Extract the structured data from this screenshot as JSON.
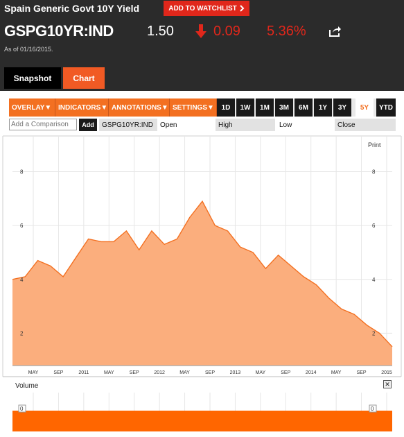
{
  "header": {
    "title": "Spain Generic Govt 10Y Yield",
    "watchlist_label": "ADD TO WATCHLIST",
    "ticker": "GSPG10YR:IND",
    "price": "1.50",
    "change": "0.09",
    "change_pct": "5.36%",
    "as_of": "As of 01/16/2015.",
    "colors": {
      "bg": "#2b2b2b",
      "down": "#e0271b"
    }
  },
  "tabs": [
    {
      "label": "Snapshot",
      "active": false
    },
    {
      "label": "Chart",
      "active": true
    }
  ],
  "toolbar": {
    "menus": [
      "OVERLAY",
      "INDICATORS",
      "ANNOTATIONS",
      "SETTINGS"
    ],
    "ranges": [
      "1D",
      "1W",
      "1M",
      "3M",
      "6M",
      "1Y",
      "3Y",
      "5Y",
      "YTD"
    ],
    "active_range": "5Y"
  },
  "compare": {
    "placeholder": "Add a Comparison",
    "add_label": "Add",
    "symbol": "GSPG10YR:IND",
    "fields": [
      "Open",
      "High",
      "Low",
      "Close"
    ]
  },
  "chart": {
    "print_label": "Print",
    "volume_label": "Volume",
    "close_icon": "close-icon"
  },
  "chart_data": {
    "type": "area",
    "color": "#f37021",
    "fill": "#fbae7d",
    "ylim": [
      0.8,
      9.3
    ],
    "yticks": [
      2,
      4,
      6,
      8
    ],
    "xticks": [
      "MAY",
      "SEP",
      "2011",
      "MAY",
      "SEP",
      "2012",
      "MAY",
      "SEP",
      "2013",
      "MAY",
      "SEP",
      "2014",
      "MAY",
      "SEP",
      "2015"
    ],
    "x": [
      "2010-01",
      "2010-03",
      "2010-05",
      "2010-07",
      "2010-09",
      "2010-11",
      "2011-01",
      "2011-03",
      "2011-05",
      "2011-07",
      "2011-09",
      "2011-11",
      "2012-01",
      "2012-03",
      "2012-05",
      "2012-07",
      "2012-09",
      "2012-11",
      "2013-01",
      "2013-03",
      "2013-05",
      "2013-07",
      "2013-09",
      "2013-11",
      "2014-01",
      "2014-03",
      "2014-05",
      "2014-07",
      "2014-09",
      "2014-11",
      "2015-01"
    ],
    "y": [
      4.0,
      4.1,
      4.7,
      4.5,
      4.1,
      4.8,
      5.5,
      5.4,
      5.4,
      5.8,
      5.1,
      5.8,
      5.3,
      5.5,
      6.3,
      6.9,
      6.0,
      5.8,
      5.2,
      5.0,
      4.4,
      4.9,
      4.5,
      4.1,
      3.8,
      3.3,
      2.9,
      2.7,
      2.3,
      2.0,
      1.5
    ],
    "volume": [
      0
    ]
  }
}
